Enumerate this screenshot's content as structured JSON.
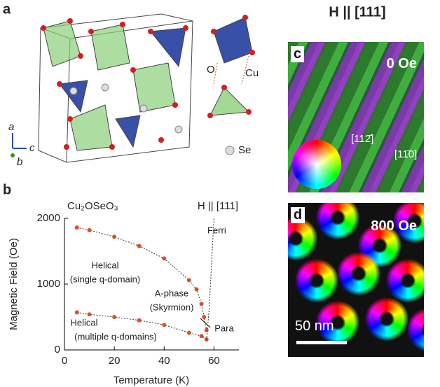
{
  "labels": {
    "panel_a": "a",
    "panel_b": "b",
    "panel_c": "c",
    "panel_d": "d",
    "atom_o": "O",
    "atom_cu": "Cu",
    "atom_se": "Se",
    "axis_a": "a",
    "axis_b": "b",
    "axis_c": "c",
    "field_title": "H || [111]",
    "field_c": "0 Oe",
    "field_d": "800 Oe",
    "dir_1": "[112̄]",
    "dir_2": "[11̄0]",
    "scale_bar": "50 nm"
  },
  "chart_data": {
    "type": "scatter",
    "title": "Cu₂OSeO₃",
    "subtitle": "H || [111]",
    "x_label": "Temperature (K)",
    "y_label": "Magnetic Field (Oe)",
    "xlim": [
      0,
      70
    ],
    "xticks": [
      0,
      20,
      40,
      60
    ],
    "ylim": [
      0,
      2000
    ],
    "yticks": [
      0,
      1000,
      2000
    ],
    "annotations": [
      "Ferri",
      "Helical",
      "(single q-domain)",
      "A-phase",
      "(Skyrmion)",
      "Helical",
      "(multiple q-domains)",
      "Para"
    ],
    "series": [
      {
        "color": "#d8502a",
        "marker": true,
        "x": [
          5,
          10,
          20,
          30,
          40,
          50,
          53,
          55,
          56,
          57
        ],
        "values": [
          1860,
          1820,
          1720,
          1580,
          1390,
          1060,
          920,
          700,
          500,
          300
        ]
      },
      {
        "color": "#d8502a",
        "marker": true,
        "x": [
          5,
          10,
          20,
          30,
          40,
          50,
          55,
          57
        ],
        "values": [
          570,
          540,
          500,
          450,
          380,
          260,
          210,
          160
        ]
      },
      {
        "color": "#333333",
        "marker": false,
        "x": [
          57,
          58,
          59,
          60
        ],
        "values": [
          150,
          600,
          1300,
          2000
        ]
      }
    ]
  }
}
